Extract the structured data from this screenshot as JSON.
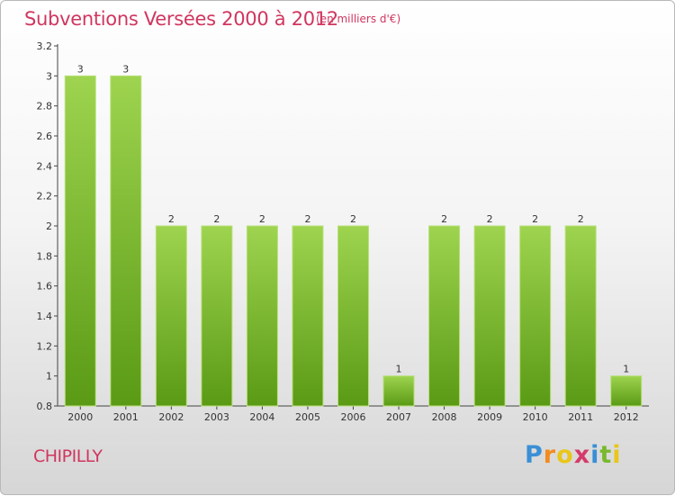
{
  "header": {
    "title": "Subventions Versées 2000 à 2012",
    "unit": "(en milliers d'€)"
  },
  "footer": {
    "commune": "CHIPILLY",
    "brand_parts": [
      "P",
      "r",
      "o",
      "x",
      "i",
      "t",
      "i"
    ],
    "brand_colors": [
      "#3a8fd6",
      "#f28c1e",
      "#e8c61a",
      "#d63a6a",
      "#3a8fd6",
      "#7ab82e",
      "#e8c61a"
    ]
  },
  "colors": {
    "bar_light": "#9ed44f",
    "bar_dark": "#5a9a15",
    "title": "#d0365f"
  },
  "chart_data": {
    "type": "bar",
    "categories": [
      "2000",
      "2001",
      "2002",
      "2003",
      "2004",
      "2005",
      "2006",
      "2007",
      "2008",
      "2009",
      "2010",
      "2011",
      "2012"
    ],
    "values": [
      3,
      3,
      2,
      2,
      2,
      2,
      2,
      1,
      2,
      2,
      2,
      2,
      1
    ],
    "value_labels": [
      "3",
      "3",
      "2",
      "2",
      "2",
      "2",
      "2",
      "1",
      "2",
      "2",
      "2",
      "2",
      "1"
    ],
    "ylim": [
      0.8,
      3.2
    ],
    "yticks": [
      0.8,
      1,
      1.2,
      1.4,
      1.6,
      1.8,
      2,
      2.2,
      2.4,
      2.6,
      2.8,
      3,
      3.2
    ],
    "ytick_labels": [
      "0.8",
      "1",
      "1.2",
      "1.4",
      "1.6",
      "1.8",
      "2",
      "2.2",
      "2.4",
      "2.6",
      "2.8",
      "3",
      "3.2"
    ],
    "grid": false
  }
}
